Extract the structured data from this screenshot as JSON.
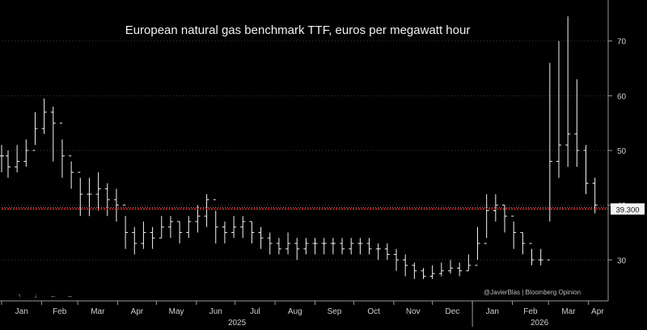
{
  "chart_data": {
    "type": "line",
    "style": "ohlc",
    "title": "European natural gas benchmark TTF, euros per megawatt hour",
    "xlabel": "",
    "ylabel": "",
    "y_axis_side": "right",
    "y_ticks": [
      "30",
      "40",
      "50",
      "60",
      "70"
    ],
    "ylim": [
      22.5,
      77.5
    ],
    "x_month_labels": [
      "Jan",
      "Feb",
      "Mar",
      "Apr",
      "May",
      "Jun",
      "Jul",
      "Aug",
      "Sep",
      "Oct",
      "Nov",
      "Dec",
      "Jan",
      "Feb",
      "Mar",
      "Apr"
    ],
    "x_year_labels": [
      "2025",
      "2026"
    ],
    "reference_line": {
      "value": 39.3,
      "label": "39.300",
      "color": "#e8332f"
    },
    "credit": "@JavierBlas | Bloomberg Opinion",
    "series_color": "#f4f4f4",
    "series": [
      {
        "x": [
          "2025-01-01",
          "2025-01-06",
          "2025-01-13",
          "2025-01-20",
          "2025-01-27",
          "2025-02-03",
          "2025-02-10",
          "2025-02-17",
          "2025-02-24",
          "2025-03-03",
          "2025-03-10",
          "2025-03-17",
          "2025-03-24",
          "2025-03-31",
          "2025-04-07",
          "2025-04-14",
          "2025-04-21",
          "2025-04-28",
          "2025-05-05",
          "2025-05-12",
          "2025-05-19",
          "2025-05-26",
          "2025-06-02",
          "2025-06-09",
          "2025-06-16",
          "2025-06-23",
          "2025-06-30",
          "2025-07-07",
          "2025-07-14",
          "2025-07-21",
          "2025-07-28",
          "2025-08-04",
          "2025-08-11",
          "2025-08-18",
          "2025-08-25",
          "2025-09-01",
          "2025-09-08",
          "2025-09-15",
          "2025-09-22",
          "2025-09-29",
          "2025-10-06",
          "2025-10-13",
          "2025-10-20",
          "2025-10-27",
          "2025-11-03",
          "2025-11-10",
          "2025-11-17",
          "2025-11-24",
          "2025-12-01",
          "2025-12-08",
          "2025-12-15",
          "2025-12-22",
          "2025-12-29",
          "2026-01-05",
          "2026-01-12",
          "2026-01-19",
          "2026-01-26",
          "2026-02-02",
          "2026-02-09",
          "2026-02-16",
          "2026-02-23",
          "2026-03-02",
          "2026-03-09",
          "2026-03-16",
          "2026-03-23",
          "2026-03-30",
          "2026-04-06"
        ],
        "close": [
          49,
          47,
          48,
          50,
          54,
          57,
          55,
          49,
          46,
          42,
          42,
          43,
          41,
          40,
          35,
          33,
          35,
          34,
          36,
          37,
          35,
          37,
          38,
          41,
          36,
          35,
          36,
          37,
          35,
          34,
          33,
          32,
          33,
          32,
          33,
          33,
          33,
          33,
          32,
          33,
          33,
          32,
          32,
          31,
          30,
          29,
          28,
          27,
          27.5,
          28,
          28.5,
          28,
          29,
          33,
          39,
          40,
          38,
          35,
          33,
          30,
          30,
          48,
          51,
          53,
          50,
          44,
          40
        ],
        "high": [
          51,
          50,
          51,
          52,
          57,
          59.5,
          58,
          52,
          48,
          45,
          45,
          46,
          44,
          43,
          38,
          36,
          37,
          36,
          38,
          38,
          37,
          38,
          40,
          42,
          39,
          37,
          38,
          38,
          37,
          36,
          35,
          34,
          35,
          34,
          34,
          34,
          34,
          34,
          34,
          34,
          34,
          34,
          33,
          33,
          32,
          31,
          29.5,
          28.5,
          29,
          29.5,
          30,
          29.5,
          31,
          36,
          42,
          42,
          40,
          37,
          35,
          32,
          32,
          66,
          70,
          74.5,
          63,
          51,
          45
        ],
        "low": [
          46,
          45,
          46,
          47,
          51,
          53,
          48,
          45,
          43,
          38,
          38,
          39,
          38,
          37,
          32,
          31,
          32,
          32,
          34,
          34,
          33,
          34,
          35,
          36,
          33,
          33,
          34,
          34,
          33,
          32,
          31,
          31,
          31,
          30,
          31,
          31,
          31,
          31,
          31,
          31,
          31,
          31,
          30,
          30,
          28,
          27,
          26.5,
          26.5,
          26.5,
          27,
          27.5,
          27,
          28,
          30,
          34,
          37,
          35,
          32,
          31,
          29,
          29,
          37,
          45,
          47,
          47,
          42,
          38.5
        ]
      }
    ]
  }
}
